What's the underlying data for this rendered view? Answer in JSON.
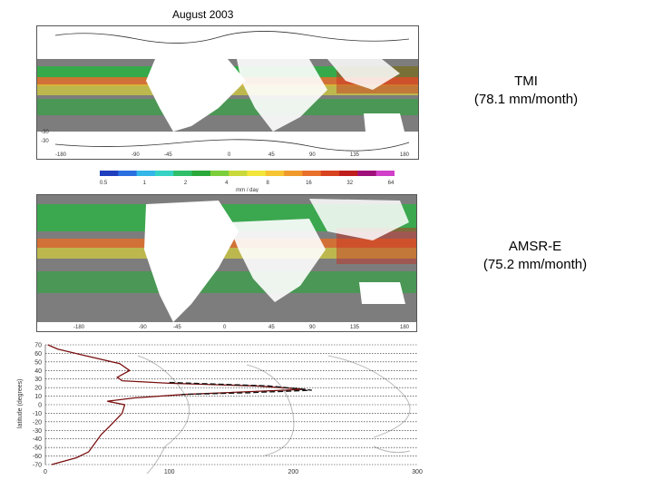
{
  "title": "August 2003",
  "panels": {
    "tmi": {
      "name": "TMI",
      "value": "(78.1 mm/month)"
    },
    "amsr": {
      "name": "AMSR-E",
      "value": "(75.2 mm/month)"
    }
  },
  "colorbar": {
    "colors": [
      "#1f3fbf",
      "#2b6fe0",
      "#33b6e8",
      "#34d3c4",
      "#2fbf6a",
      "#2aa83a",
      "#7ccf3a",
      "#c9d93a",
      "#f2e63a",
      "#f6c431",
      "#f09a2c",
      "#e8702a",
      "#d8421f",
      "#c01e1e",
      "#a0107a",
      "#d040c8"
    ],
    "ticks": [
      "0.5",
      "1",
      "2",
      "4",
      "8",
      "16",
      "32",
      "64"
    ],
    "units": "mm / day"
  },
  "map_axis": {
    "lat_ticks": [
      "30",
      "0",
      "-30"
    ],
    "lon_ticks": [
      "-180",
      "-90",
      "-45",
      "0",
      "45",
      "90",
      "135",
      "180"
    ]
  },
  "chart_data": {
    "type": "line",
    "ylabel": "latitude (degrees)",
    "yticks": [
      "70",
      "60",
      "50",
      "40",
      "30",
      "20",
      "10",
      "0",
      "-10",
      "-20",
      "-30",
      "-40",
      "-50",
      "-60",
      "-70"
    ],
    "xticks": [
      "0",
      "100",
      "200",
      "300"
    ],
    "xlim": [
      0,
      300
    ],
    "ylim": [
      -70,
      70
    ],
    "series": [
      {
        "style": "solid",
        "color": "#7a1010",
        "x": [
          2,
          10,
          30,
          60,
          68,
          58,
          62,
          100,
          170,
          210,
          112,
          72,
          50,
          64,
          62,
          52,
          45,
          40,
          35,
          25,
          5
        ],
        "y": [
          70,
          65,
          58,
          48,
          40,
          32,
          28,
          25,
          22,
          18,
          12,
          8,
          4,
          0,
          -10,
          -25,
          -35,
          -45,
          -55,
          -62,
          -70
        ]
      },
      {
        "style": "dashed",
        "color": "#111111",
        "x": [
          100,
          180,
          215,
          165,
          110
        ],
        "y": [
          26,
          22,
          17,
          14,
          12
        ]
      }
    ]
  }
}
